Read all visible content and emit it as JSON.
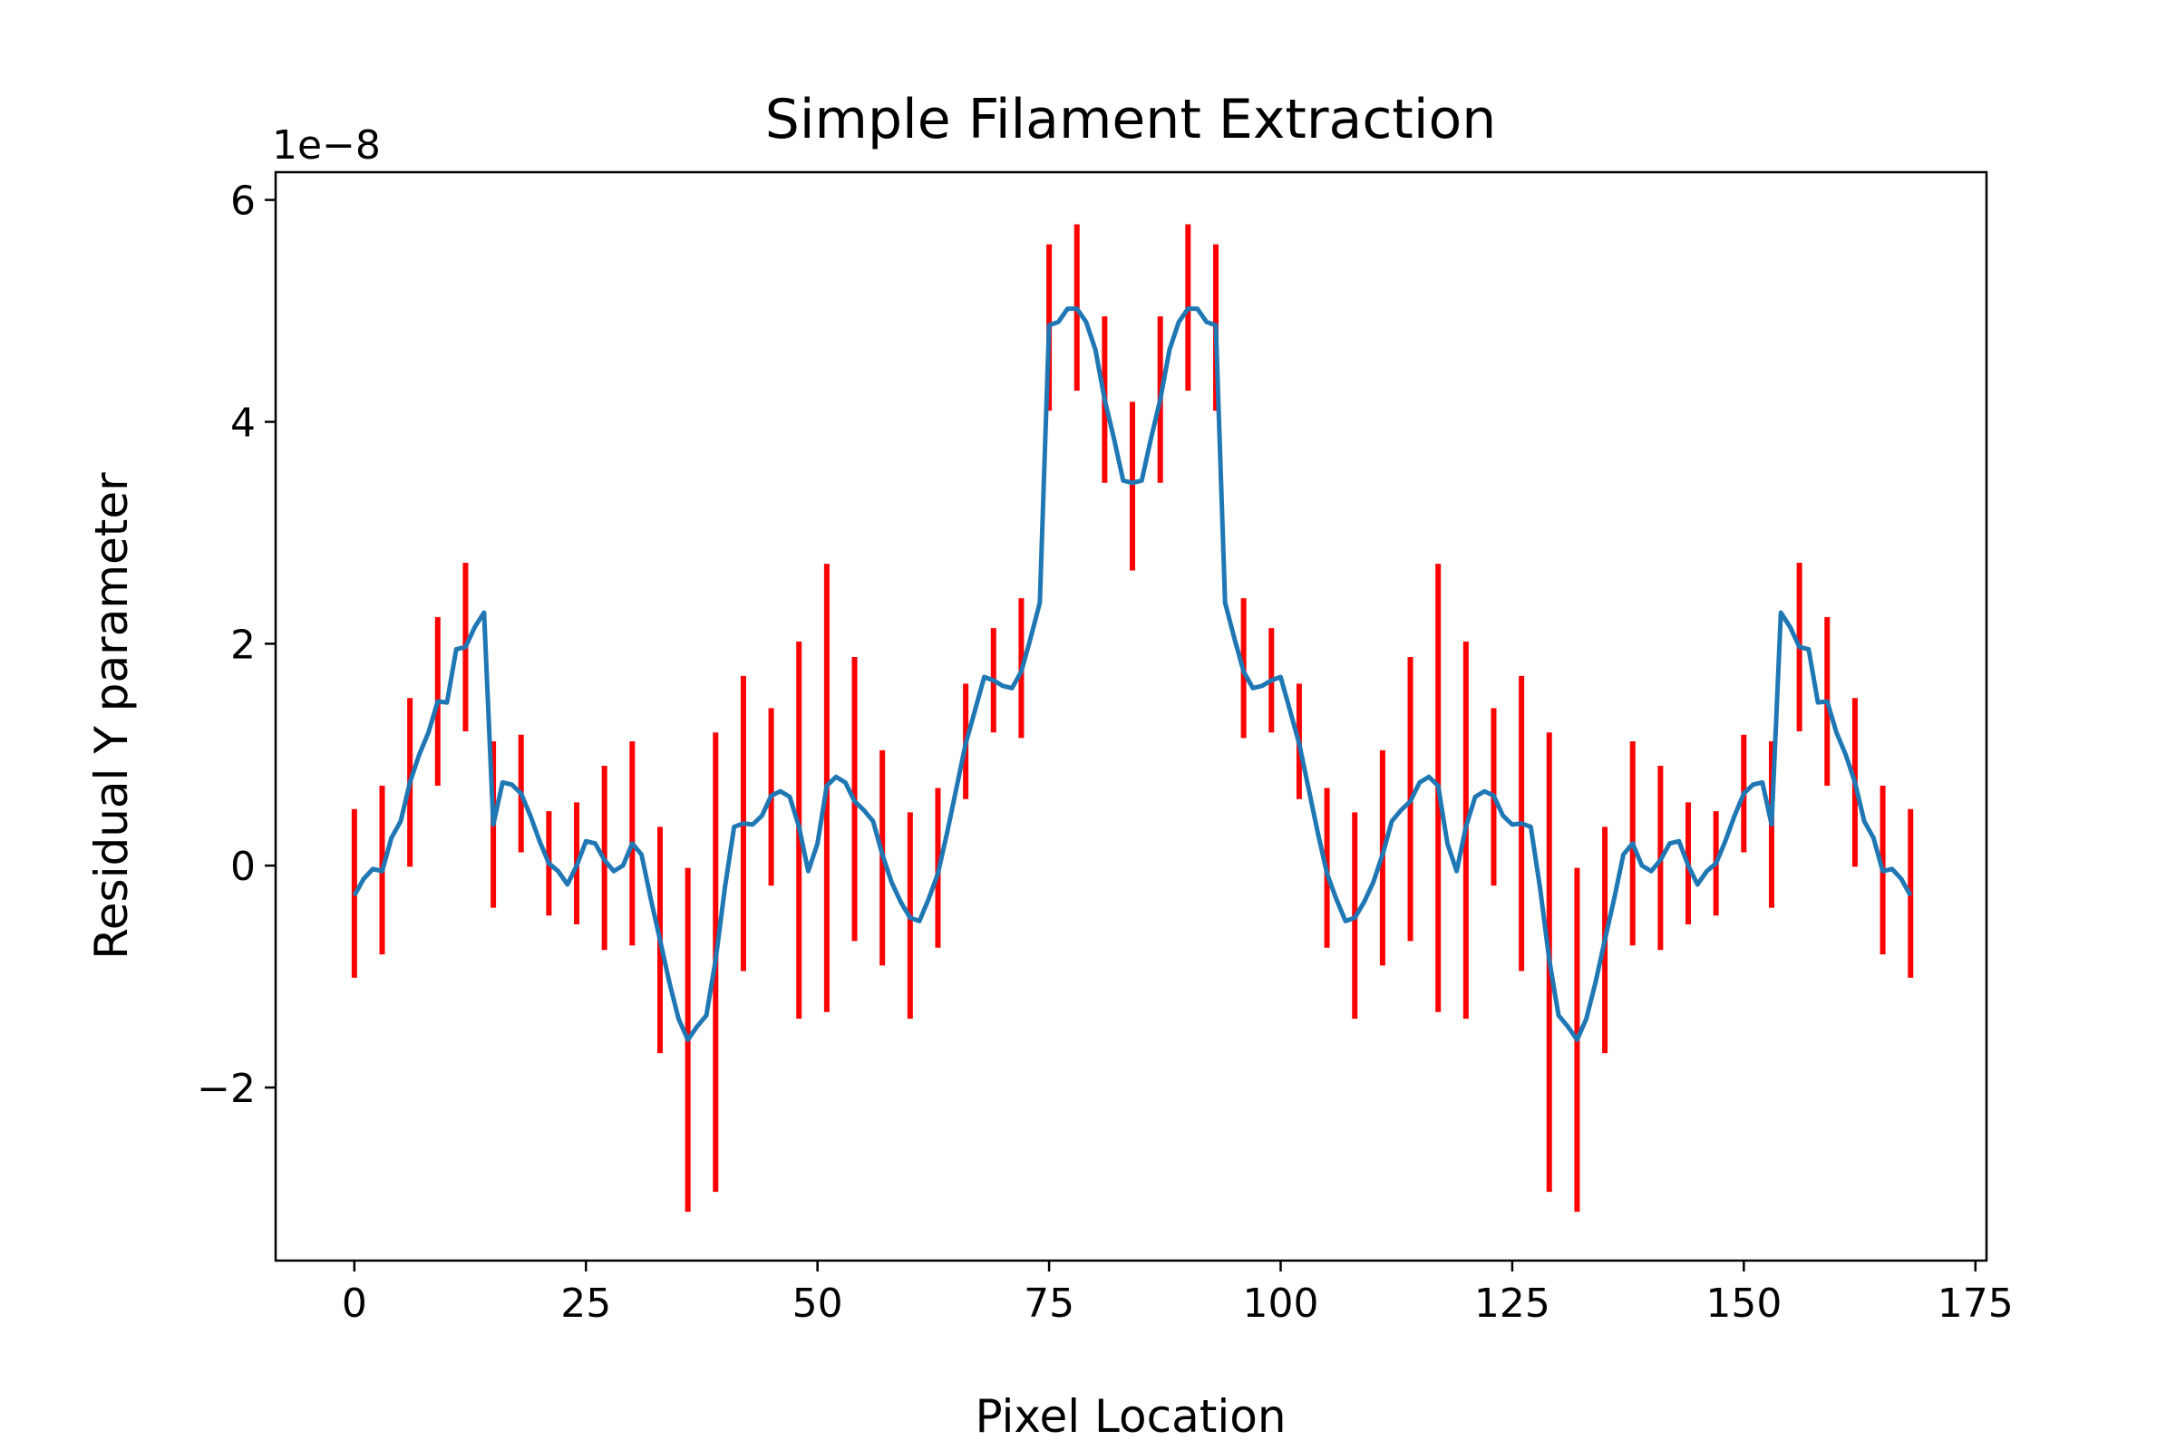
{
  "chart_data": {
    "type": "errorbar",
    "title": "Simple Filament Extraction",
    "xlabel": "Pixel Location",
    "ylabel": "Residual Y parameter",
    "y_offset_label": "1e−8",
    "xlim": [
      -8.5,
      176.2
    ],
    "ylim": [
      -3.56,
      6.25
    ],
    "xticks": [
      0,
      25,
      50,
      75,
      100,
      125,
      150,
      175
    ],
    "yticks": [
      {
        "value": -2,
        "label": "−2"
      },
      0,
      2,
      4,
      6
    ],
    "line": {
      "color": "#1f77b4",
      "x": [
        0,
        1,
        2,
        3,
        4,
        5,
        6,
        7,
        8,
        9,
        10,
        11,
        12,
        13,
        14,
        15,
        16,
        17,
        18,
        19,
        20,
        21,
        22,
        23,
        24,
        25,
        26,
        27,
        28,
        29,
        30,
        31,
        32,
        33,
        34,
        35,
        36,
        37,
        38,
        39,
        40,
        41,
        42,
        43,
        44,
        45,
        46,
        47,
        48,
        49,
        50,
        51,
        52,
        53,
        54,
        55,
        56,
        57,
        58,
        59,
        60,
        61,
        62,
        63,
        64,
        65,
        66,
        67,
        68,
        69,
        70,
        71,
        72,
        73,
        74,
        75,
        76,
        77,
        78,
        79,
        80,
        81,
        82,
        83,
        84,
        85,
        86,
        87,
        88,
        89,
        90,
        91,
        92,
        93,
        94,
        95,
        96,
        97,
        98,
        99,
        100,
        101,
        102,
        103,
        104,
        105,
        106,
        107,
        108,
        109,
        110,
        111,
        112,
        113,
        114,
        115,
        116,
        117,
        118,
        119,
        120,
        121,
        122,
        123,
        124,
        125,
        126,
        127,
        128,
        129,
        130,
        131,
        132,
        133,
        134,
        135,
        136,
        137,
        138,
        139,
        140,
        141,
        142,
        143,
        144,
        145,
        146,
        147,
        148,
        149,
        150,
        151,
        152,
        153,
        154,
        155,
        156,
        157,
        158,
        159,
        160,
        161,
        162,
        163,
        164,
        165,
        166,
        167,
        168
      ],
      "values": [
        -0.27,
        -0.12,
        -0.03,
        -0.05,
        0.25,
        0.4,
        0.75,
        1.0,
        1.2,
        1.48,
        1.47,
        1.95,
        1.97,
        2.15,
        2.28,
        0.37,
        0.75,
        0.73,
        0.65,
        0.45,
        0.22,
        0.02,
        -0.05,
        -0.17,
        0.0,
        0.22,
        0.2,
        0.05,
        -0.05,
        0.0,
        0.2,
        0.1,
        -0.3,
        -0.67,
        -1.05,
        -1.38,
        -1.57,
        -1.45,
        -1.35,
        -0.85,
        -0.2,
        0.35,
        0.38,
        0.37,
        0.45,
        0.63,
        0.67,
        0.62,
        0.35,
        -0.05,
        0.2,
        0.72,
        0.8,
        0.75,
        0.58,
        0.5,
        0.4,
        0.1,
        -0.15,
        -0.33,
        -0.47,
        -0.5,
        -0.3,
        -0.07,
        0.3,
        0.7,
        1.1,
        1.4,
        1.7,
        1.67,
        1.62,
        1.6,
        1.75,
        2.05,
        2.37,
        4.87,
        4.9,
        5.02,
        5.02,
        4.9,
        4.65,
        4.2,
        3.85,
        3.47,
        3.45,
        3.47,
        3.85,
        4.2,
        4.65,
        4.9,
        5.02,
        5.02,
        4.9,
        4.87,
        2.37,
        2.05,
        1.75,
        1.6,
        1.62,
        1.67,
        1.7,
        1.4,
        1.1,
        0.7,
        0.3,
        -0.07,
        -0.3,
        -0.5,
        -0.47,
        -0.33,
        -0.15,
        0.1,
        0.4,
        0.5,
        0.58,
        0.75,
        0.8,
        0.72,
        0.2,
        -0.05,
        0.35,
        0.62,
        0.67,
        0.63,
        0.45,
        0.37,
        0.38,
        0.35,
        -0.2,
        -0.85,
        -1.35,
        -1.45,
        -1.57,
        -1.38,
        -1.05,
        -0.67,
        -0.3,
        0.1,
        0.2,
        0.0,
        -0.05,
        0.05,
        0.2,
        0.22,
        0.0,
        -0.17,
        -0.05,
        0.02,
        0.22,
        0.45,
        0.65,
        0.73,
        0.75,
        0.37,
        2.28,
        2.15,
        1.97,
        1.95,
        1.47,
        1.48,
        1.2,
        1.0,
        0.75,
        0.4,
        0.25,
        -0.05,
        -0.03,
        -0.12,
        -0.27
      ]
    },
    "errorbars": {
      "color": "#ff0000",
      "x": [
        0,
        3,
        6,
        9,
        12,
        15,
        18,
        21,
        24,
        27,
        30,
        33,
        36,
        39,
        42,
        45,
        48,
        51,
        54,
        57,
        60,
        63,
        66,
        69,
        72,
        75,
        78,
        81,
        84,
        87,
        90,
        93,
        96,
        99,
        102,
        105,
        108,
        111,
        114,
        117,
        120,
        123,
        126,
        129,
        132,
        135,
        138,
        141,
        144,
        147,
        150,
        153,
        156,
        159,
        162,
        165,
        168
      ],
      "values": [
        -0.25,
        -0.04,
        0.75,
        1.48,
        1.97,
        0.37,
        0.65,
        0.02,
        0.02,
        0.07,
        0.2,
        -0.67,
        -1.57,
        -0.87,
        0.38,
        0.62,
        0.32,
        0.7,
        0.6,
        0.07,
        -0.45,
        -0.02,
        1.12,
        1.67,
        1.78,
        4.85,
        5.03,
        4.2,
        3.42,
        4.2,
        5.03,
        4.85,
        1.78,
        1.67,
        1.12,
        -0.02,
        -0.45,
        0.07,
        0.6,
        0.7,
        0.32,
        0.62,
        0.38,
        -0.87,
        -1.57,
        -0.67,
        0.2,
        0.07,
        0.02,
        0.02,
        0.65,
        0.37,
        1.97,
        1.48,
        0.75,
        -0.04,
        -0.25
      ],
      "errors": [
        0.76,
        0.76,
        0.76,
        0.76,
        0.76,
        0.75,
        0.53,
        0.47,
        0.55,
        0.83,
        0.92,
        1.02,
        1.55,
        2.07,
        1.33,
        0.8,
        1.7,
        2.02,
        1.28,
        0.97,
        0.93,
        0.72,
        0.52,
        0.47,
        0.63,
        0.75,
        0.75,
        0.75,
        0.76,
        0.75,
        0.75,
        0.75,
        0.63,
        0.47,
        0.52,
        0.72,
        0.93,
        0.97,
        1.28,
        2.02,
        1.7,
        0.8,
        1.33,
        2.07,
        1.55,
        1.02,
        0.92,
        0.83,
        0.55,
        0.47,
        0.53,
        0.75,
        0.76,
        0.76,
        0.76,
        0.76,
        0.76
      ]
    }
  }
}
